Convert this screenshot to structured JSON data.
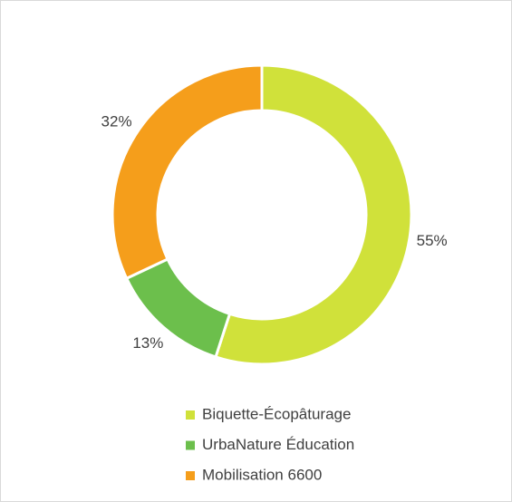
{
  "chart_data": {
    "type": "donut",
    "categories": [
      "Biquette-Écopâturage",
      "UrbaNature Éducation",
      "Mobilisation 6600"
    ],
    "values": [
      55,
      13,
      32
    ],
    "value_labels": [
      "55%",
      "13%",
      "32%"
    ],
    "colors": [
      "#d0e13a",
      "#6cbf4c",
      "#f59e1b"
    ]
  }
}
